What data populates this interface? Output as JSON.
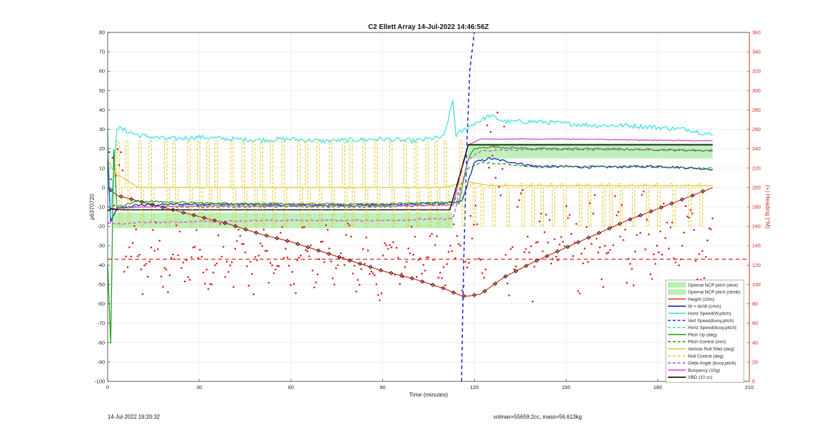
{
  "chart_data": {
    "type": "line",
    "title": "C2 Ellett Array 14-Jul-2022 14:46:56Z",
    "xlabel": "Time (minutes)",
    "ylabel": "p6370720",
    "ylabel_right": "(+) Heading (°M)",
    "xlim": [
      0,
      210
    ],
    "ylim": [
      -100,
      80
    ],
    "ylim_right": [
      0,
      360
    ],
    "x_ticks": [
      "0",
      "30",
      "60",
      "90",
      "120",
      "150",
      "180",
      "210"
    ],
    "y_ticks": [
      "80",
      "70",
      "60",
      "50",
      "40",
      "30",
      "20",
      "10",
      "0",
      "-10",
      "-20",
      "-30",
      "-40",
      "-50",
      "-60",
      "-70",
      "-80",
      "-90",
      "-100"
    ],
    "y_ticks_right": [
      "360",
      "340",
      "320",
      "300",
      "280",
      "260",
      "240",
      "220",
      "200",
      "180",
      "160",
      "140",
      "120",
      "100",
      "80",
      "60",
      "40",
      "20",
      "0"
    ],
    "grid": true,
    "legend_position": "bottom-right",
    "colors": {
      "ncp_band": "#b8f0b4",
      "height": "#e03a2a",
      "w": "#0d20b0",
      "horiz": "#3fdfe0",
      "vert": "#1a2be0",
      "pitch": "#1ea01e",
      "roll": "#e2c72a",
      "buoyancy": "#d940d9",
      "vbd": "#000000",
      "heading": "#dd1a1a",
      "right_axis": "#cc2b1f"
    },
    "legend": [
      {
        "label": "Optimal NCP pitch (dive)",
        "style": "patch",
        "color": "#b8f0b4"
      },
      {
        "label": "Optimal NCP pitch (climb)",
        "style": "patch",
        "color": "#b8f0b4"
      },
      {
        "label": "Height (10m)",
        "style": "solid",
        "color": "#e03a2a"
      },
      {
        "label": "W = dz/dt (cm/s)",
        "style": "solid",
        "color": "#0d20b0"
      },
      {
        "label": "Horiz Speed(W,pitch)",
        "style": "solid",
        "color": "#3fdfe0"
      },
      {
        "label": "Vert Speed(buoy,pitch)",
        "style": "dashed",
        "color": "#1a2be0"
      },
      {
        "label": "Horiz Speed(buoy,pitch)",
        "style": "dashed",
        "color": "#3fdfe0"
      },
      {
        "label": "Pitch Up (deg)",
        "style": "solid",
        "color": "#1ea01e"
      },
      {
        "label": "Pitch Control (mm)",
        "style": "dashed",
        "color": "#1ea01e"
      },
      {
        "label": "Vehicle Roll Stbd (deg)",
        "style": "solid",
        "color": "#e2c72a"
      },
      {
        "label": "Roll Control (deg)",
        "style": "dashed",
        "color": "#e2c72a"
      },
      {
        "label": "Glide Angle (buoy,pitch)",
        "style": "dashed",
        "color": "#d940d9"
      },
      {
        "label": "Buoyancy (10g)",
        "style": "solid",
        "color": "#d940d9"
      },
      {
        "label": "VBD (10 cc)",
        "style": "solid",
        "color": "#000000"
      }
    ],
    "series": [
      {
        "name": "Height (10m)",
        "x": [
          0,
          3,
          10,
          20,
          30,
          40,
          50,
          60,
          70,
          80,
          90,
          100,
          110,
          116,
          118,
          120,
          122,
          130,
          140,
          150,
          160,
          170,
          180,
          190,
          198
        ],
        "y": [
          0,
          -4,
          -7,
          -11,
          -15,
          -19,
          -24,
          -28,
          -33,
          -38,
          -43,
          -47,
          -52,
          -56,
          -56,
          -55.5,
          -55,
          -46,
          -38,
          -31,
          -24,
          -17,
          -11,
          -5,
          0
        ]
      },
      {
        "name": "W = dz/dt (cm/s)",
        "x": [
          0,
          1,
          3,
          10,
          30,
          60,
          90,
          113,
          116,
          120,
          125,
          140,
          160,
          180,
          198
        ],
        "y": [
          15,
          -18,
          -11,
          -9,
          -8.5,
          -9,
          -9,
          -8,
          -7,
          13,
          15,
          11,
          10.5,
          11,
          9.5
        ]
      },
      {
        "name": "Horiz Speed(W,pitch)",
        "x": [
          0,
          1,
          3,
          10,
          20,
          30,
          40,
          50,
          60,
          70,
          80,
          90,
          100,
          110,
          113,
          114,
          116,
          120,
          125,
          130,
          140,
          150,
          160,
          170,
          180,
          190,
          198
        ],
        "y": [
          30,
          -15,
          31,
          27,
          25,
          26,
          25,
          24.5,
          25,
          24,
          24.5,
          25,
          24,
          26,
          45,
          27,
          29,
          33,
          37,
          34,
          34,
          33,
          32,
          32,
          31,
          30,
          27
        ]
      },
      {
        "name": "Vert Speed(buoy,pitch)",
        "x": [
          115.8,
          116.5,
          117.5,
          118.5,
          120
        ],
        "y": [
          -100,
          -40,
          20,
          60,
          80
        ]
      },
      {
        "name": "Pitch Up (deg)",
        "x": [
          0,
          1,
          2,
          3,
          10,
          30,
          60,
          90,
          113,
          115,
          118,
          120,
          125,
          140,
          160,
          180,
          198
        ],
        "y": [
          -40,
          -80,
          20,
          -10,
          -7,
          -8,
          -8.5,
          -8.5,
          -7.5,
          -8,
          15,
          20,
          21,
          20,
          20,
          19.5,
          19
        ]
      },
      {
        "name": "Pitch Control (mm)",
        "x": [
          0,
          2,
          10,
          30,
          60,
          90,
          113,
          118,
          122,
          140,
          160,
          180,
          198
        ],
        "y": [
          -12,
          -11,
          -10,
          -10,
          -10,
          -10,
          -9,
          10,
          13,
          10.5,
          11,
          10.5,
          10
        ]
      },
      {
        "name": "Vehicle Roll Stbd (deg)",
        "x": [
          0,
          2,
          10,
          30,
          60,
          90,
          110,
          118,
          125,
          150,
          175,
          198
        ],
        "y": [
          15,
          8,
          0,
          0,
          0,
          0,
          0,
          3,
          1,
          1,
          1,
          1
        ]
      },
      {
        "name": "Glide Angle (buoy,pitch)",
        "x": [
          0,
          3,
          10,
          30,
          60,
          90,
          113,
          118,
          122,
          140,
          160,
          180,
          198
        ],
        "y": [
          -18,
          -19,
          -18,
          -17.5,
          -17,
          -17,
          -16,
          14,
          19,
          19.5,
          19.5,
          19.5,
          19
        ]
      },
      {
        "name": "Buoyancy (10g)",
        "x": [
          0,
          2,
          10,
          30,
          60,
          90,
          113,
          118,
          122,
          150,
          198
        ],
        "y": [
          -10,
          -11,
          -10,
          -9.5,
          -9.5,
          -9.5,
          -9,
          22,
          25,
          25,
          24
        ]
      },
      {
        "name": "VBD (10 cc)",
        "x": [
          0,
          1,
          3,
          112,
          118,
          122,
          198
        ],
        "y": [
          -12,
          -11,
          -11.5,
          -11.5,
          22,
          22,
          22
        ]
      },
      {
        "name": "Optimal NCP pitch (dive)",
        "x": [
          2,
          113
        ],
        "y_low": [
          -21,
          -21
        ],
        "y_high": [
          -13,
          -13
        ]
      },
      {
        "name": "Optimal NCP pitch (climb)",
        "x": [
          118,
          198
        ],
        "y_low": [
          15,
          15
        ],
        "y_high": [
          23,
          23
        ]
      }
    ],
    "reference_lines": [
      {
        "name": "Heading mean",
        "axis": "right",
        "value": 126,
        "style": "dashed",
        "color": "#dd1a1a"
      }
    ]
  },
  "footer": {
    "left": "14-Jul-2022 19:20:32",
    "right": "volmax=55659.2cc, mass=56.613kg"
  }
}
